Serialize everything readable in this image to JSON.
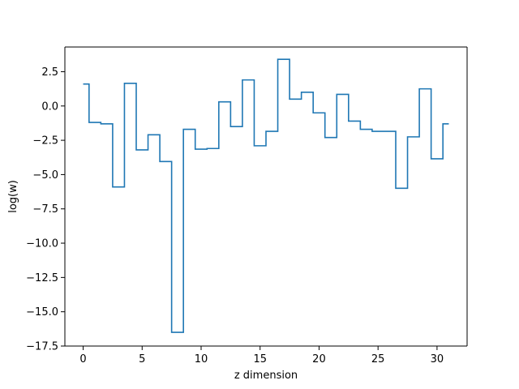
{
  "chart_data": {
    "type": "line",
    "drawstyle": "steps-mid",
    "title": "",
    "xlabel": "z dimension",
    "ylabel": "log(w)",
    "xlim": [
      -1.55,
      32.55
    ],
    "ylim": [
      -17.5,
      4.3
    ],
    "xticks": [
      0,
      5,
      10,
      15,
      20,
      25,
      30
    ],
    "yticks": [
      2.5,
      0.0,
      -2.5,
      -5.0,
      -7.5,
      -10.0,
      -12.5,
      -15.0,
      -17.5
    ],
    "ytick_labels": [
      "2.5",
      "0.0",
      "−2.5",
      "−5.0",
      "−7.5",
      "−10.0",
      "−12.5",
      "−15.0",
      "−17.5"
    ],
    "grid": false,
    "series": [
      {
        "color": "#1f77b4",
        "x": [
          0,
          1,
          2,
          3,
          4,
          5,
          6,
          7,
          8,
          9,
          10,
          11,
          12,
          13,
          14,
          15,
          16,
          17,
          18,
          19,
          20,
          21,
          22,
          23,
          24,
          25,
          26,
          27,
          28,
          29,
          30,
          31
        ],
        "y": [
          1.6,
          -1.2,
          -1.3,
          -5.9,
          1.65,
          -3.2,
          -2.1,
          -4.05,
          -16.5,
          -1.7,
          -3.15,
          -3.1,
          0.3,
          -1.5,
          1.9,
          -2.9,
          -1.85,
          3.4,
          0.5,
          1.0,
          -0.5,
          -2.3,
          0.85,
          -1.1,
          -1.7,
          -1.85,
          -1.85,
          -6.0,
          -2.25,
          1.25,
          -3.85,
          -1.3
        ]
      }
    ]
  }
}
